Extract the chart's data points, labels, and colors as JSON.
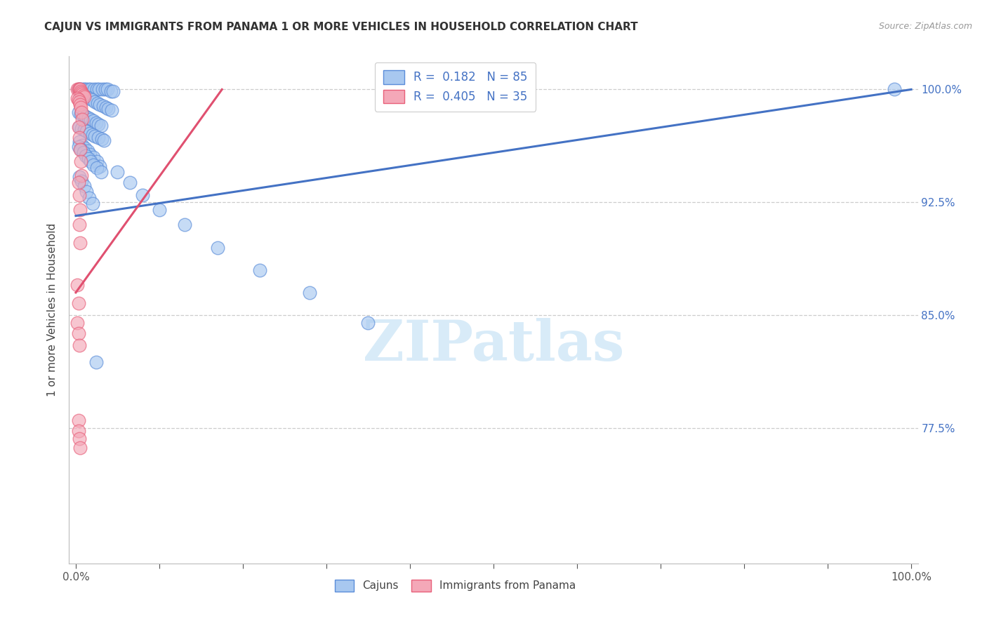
{
  "title": "CAJUN VS IMMIGRANTS FROM PANAMA 1 OR MORE VEHICLES IN HOUSEHOLD CORRELATION CHART",
  "source": "Source: ZipAtlas.com",
  "ylabel": "1 or more Vehicles in Household",
  "y_min": 0.685,
  "y_max": 1.022,
  "x_min": -0.008,
  "x_max": 1.008,
  "blue_color": "#A8C8F0",
  "pink_color": "#F4A8B8",
  "blue_edge_color": "#5B8DD9",
  "pink_edge_color": "#E8607A",
  "blue_line_color": "#4472C4",
  "pink_line_color": "#E05070",
  "watermark_color": "#D8EBF8",
  "grid_color": "#CCCCCC",
  "right_axis_color": "#4472C4",
  "blue_trend_x0": 0.0,
  "blue_trend_y0": 0.916,
  "blue_trend_x1": 1.0,
  "blue_trend_y1": 1.0,
  "pink_trend_x0": 0.0,
  "pink_trend_y0": 0.865,
  "pink_trend_x1": 0.175,
  "pink_trend_y1": 1.0,
  "y_ticks": [
    0.775,
    0.85,
    0.925,
    1.0
  ],
  "y_tick_labels": [
    "77.5%",
    "85.0%",
    "92.5%",
    "100.0%"
  ],
  "cajun_x": [
    0.98,
    0.003,
    0.005,
    0.008,
    0.01,
    0.012,
    0.015,
    0.018,
    0.022,
    0.025,
    0.028,
    0.032,
    0.035,
    0.038,
    0.042,
    0.045,
    0.005,
    0.007,
    0.009,
    0.011,
    0.013,
    0.016,
    0.019,
    0.023,
    0.026,
    0.029,
    0.033,
    0.036,
    0.039,
    0.043,
    0.003,
    0.006,
    0.009,
    0.012,
    0.015,
    0.018,
    0.021,
    0.024,
    0.027,
    0.03,
    0.004,
    0.007,
    0.01,
    0.013,
    0.017,
    0.02,
    0.023,
    0.027,
    0.031,
    0.034,
    0.004,
    0.008,
    0.011,
    0.014,
    0.017,
    0.021,
    0.025,
    0.029,
    0.05,
    0.065,
    0.08,
    0.1,
    0.13,
    0.17,
    0.22,
    0.28,
    0.35,
    0.003,
    0.006,
    0.009,
    0.012,
    0.015,
    0.018,
    0.021,
    0.025,
    0.03,
    0.004,
    0.007,
    0.01,
    0.013,
    0.016,
    0.02,
    0.024
  ],
  "cajun_y": [
    1.0,
    1.0,
    1.0,
    1.0,
    1.0,
    1.0,
    1.0,
    1.0,
    1.0,
    1.0,
    1.0,
    1.0,
    1.0,
    1.0,
    0.999,
    0.999,
    0.998,
    0.997,
    0.996,
    0.995,
    0.995,
    0.994,
    0.993,
    0.992,
    0.991,
    0.99,
    0.989,
    0.988,
    0.987,
    0.986,
    0.985,
    0.984,
    0.983,
    0.982,
    0.981,
    0.98,
    0.979,
    0.978,
    0.977,
    0.976,
    0.975,
    0.974,
    0.973,
    0.972,
    0.971,
    0.97,
    0.969,
    0.968,
    0.967,
    0.966,
    0.965,
    0.963,
    0.961,
    0.959,
    0.957,
    0.955,
    0.952,
    0.949,
    0.945,
    0.938,
    0.93,
    0.92,
    0.91,
    0.895,
    0.88,
    0.865,
    0.845,
    0.962,
    0.96,
    0.958,
    0.956,
    0.954,
    0.952,
    0.95,
    0.948,
    0.945,
    0.942,
    0.939,
    0.936,
    0.932,
    0.928,
    0.924,
    0.819
  ],
  "panama_x": [
    0.002,
    0.003,
    0.004,
    0.005,
    0.006,
    0.007,
    0.008,
    0.009,
    0.01,
    0.002,
    0.003,
    0.004,
    0.005,
    0.006,
    0.007,
    0.008,
    0.003,
    0.004,
    0.005,
    0.006,
    0.007,
    0.003,
    0.004,
    0.005,
    0.004,
    0.005,
    0.002,
    0.003,
    0.002,
    0.003,
    0.004,
    0.003,
    0.003,
    0.004,
    0.005
  ],
  "panama_y": [
    1.0,
    1.0,
    1.0,
    1.0,
    0.999,
    0.998,
    0.997,
    0.996,
    0.995,
    0.994,
    0.993,
    0.992,
    0.99,
    0.988,
    0.985,
    0.98,
    0.975,
    0.968,
    0.96,
    0.952,
    0.943,
    0.938,
    0.93,
    0.92,
    0.91,
    0.898,
    0.87,
    0.858,
    0.845,
    0.838,
    0.83,
    0.78,
    0.773,
    0.768,
    0.762
  ]
}
